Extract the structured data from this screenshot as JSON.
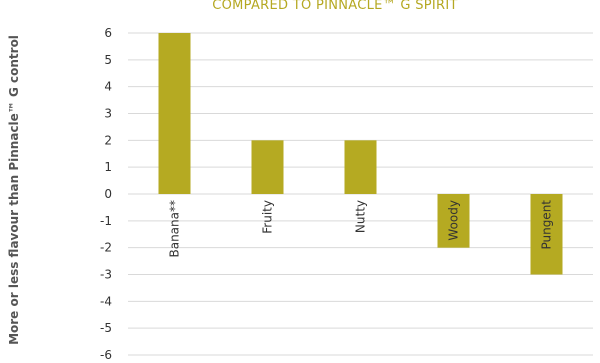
{
  "chart_data": {
    "type": "bar",
    "title": "COMPARED TO PINNACLE™ G SPIRIT",
    "ylabel": "More or less flavour than Pinnacle™ G control",
    "xlabel": "",
    "categories": [
      "Banana**",
      "Fruity",
      "Nutty",
      "Woody",
      "Pungent"
    ],
    "values": [
      6,
      2,
      2,
      -2,
      -3
    ],
    "ylim": [
      -6,
      6
    ],
    "yticks": [
      6,
      5,
      4,
      3,
      2,
      1,
      0,
      -1,
      -2,
      -3,
      -4,
      -5,
      -6
    ],
    "grid": true,
    "legend": "none",
    "bar_color": "#b5aa22",
    "title_color": "#b5a822"
  }
}
